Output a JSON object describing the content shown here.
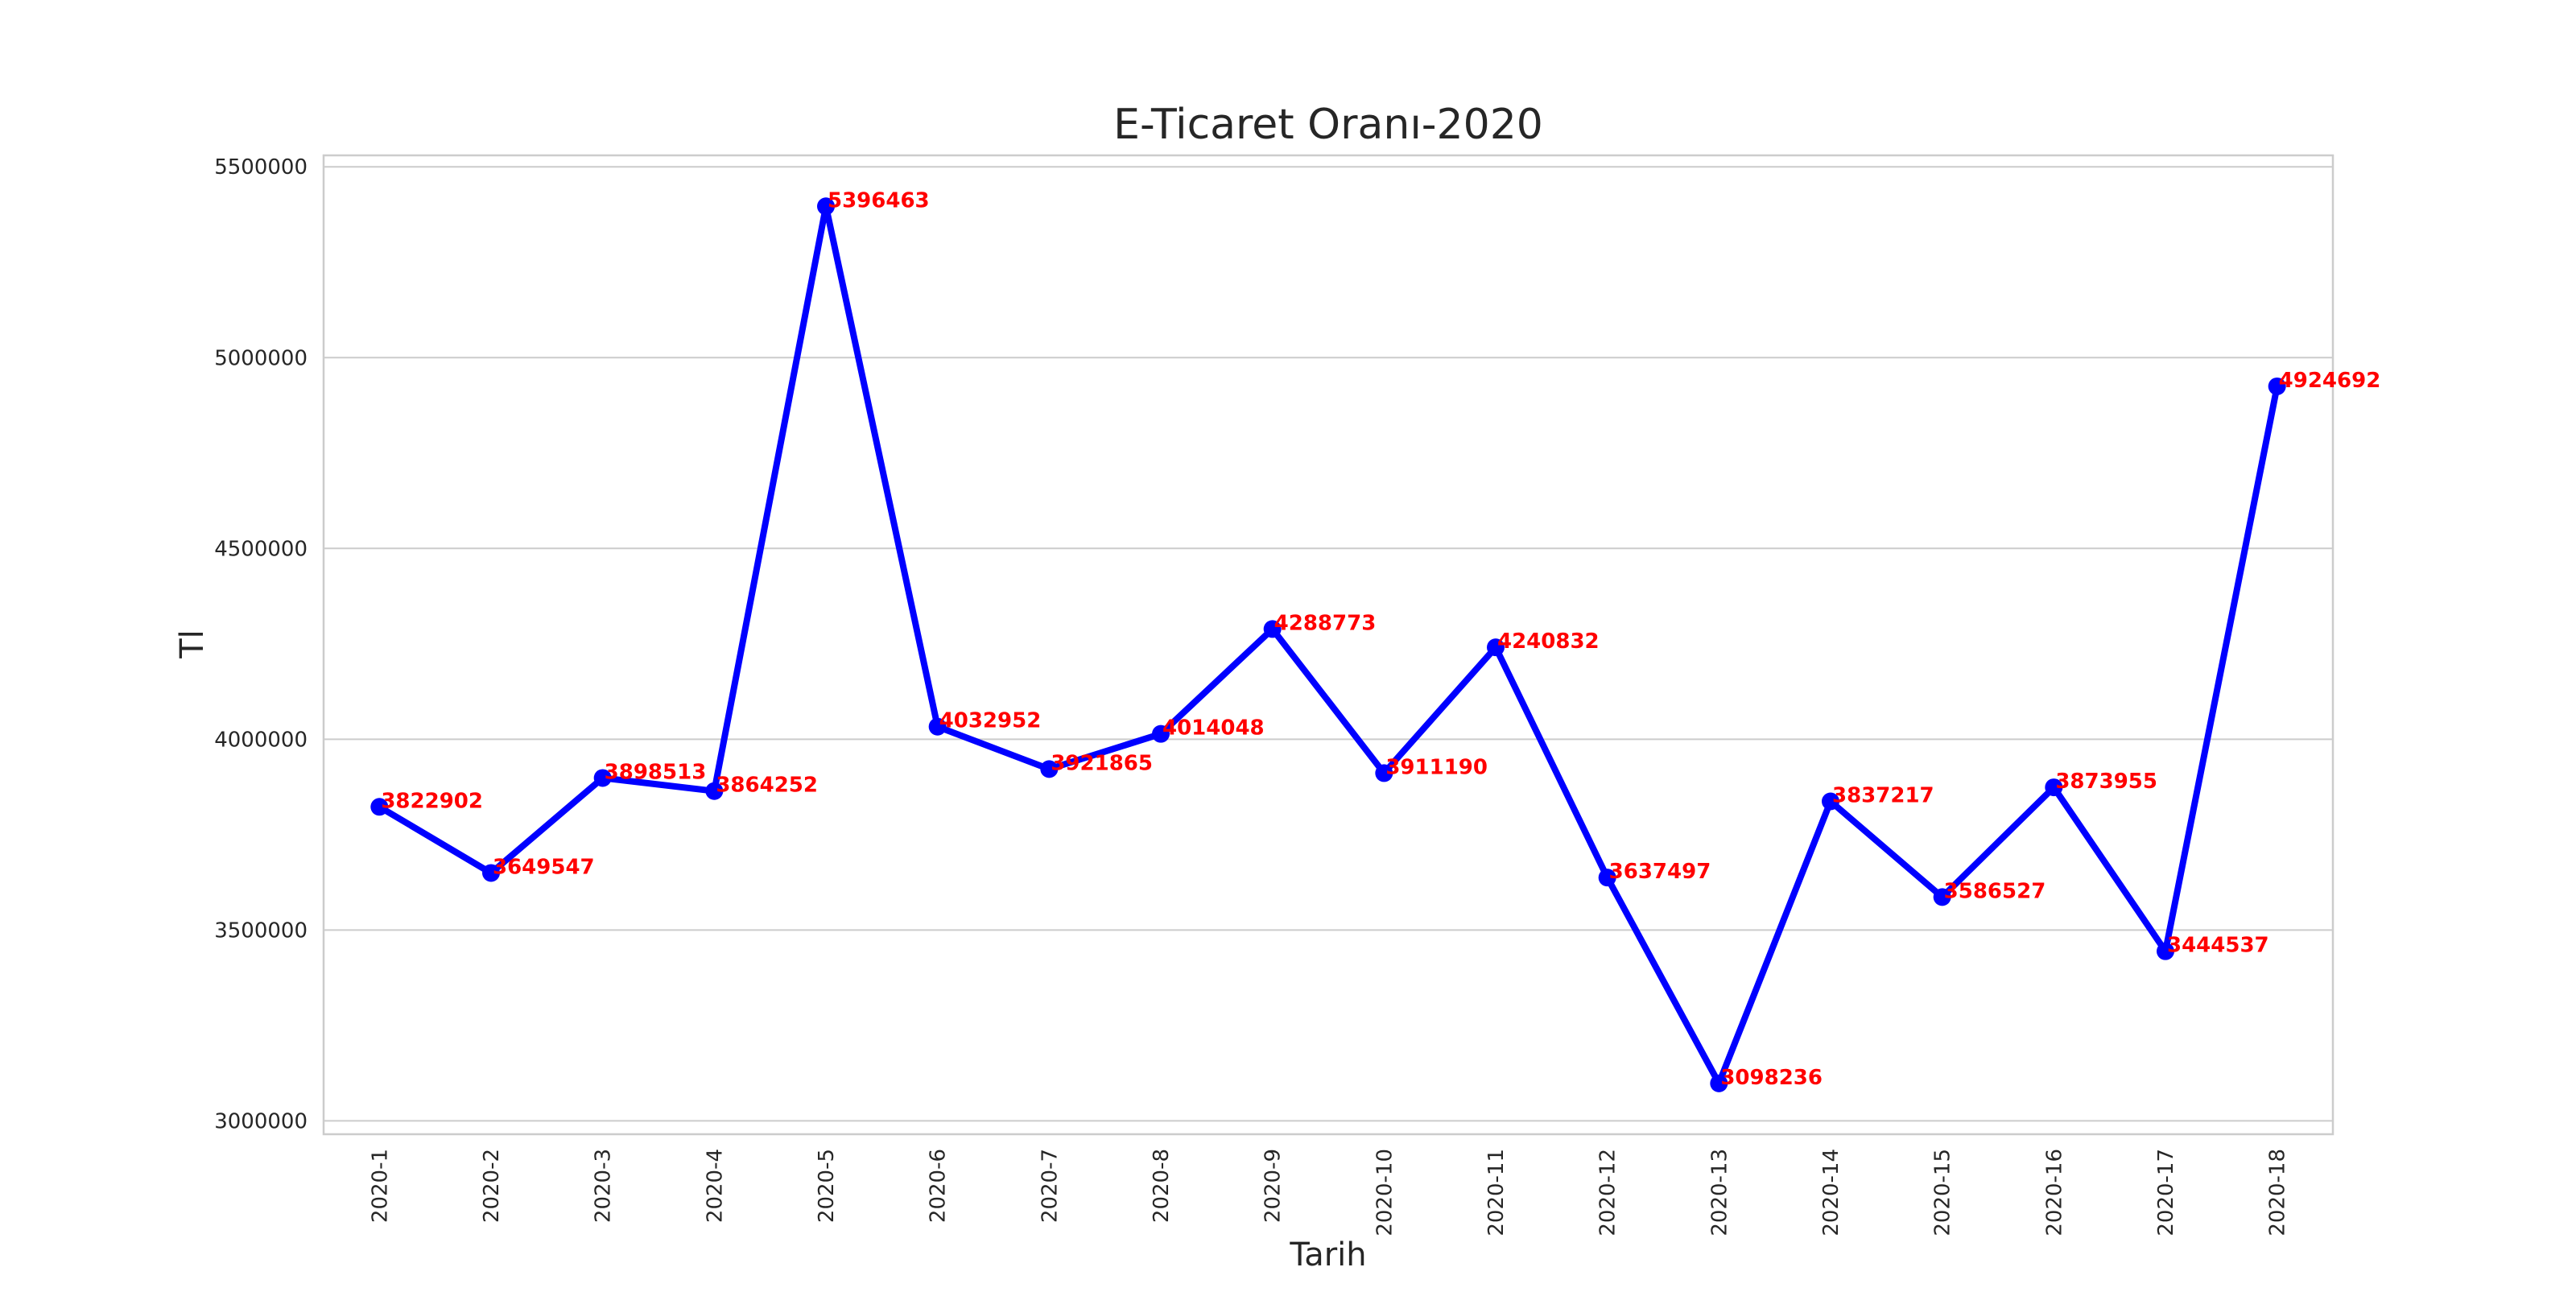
{
  "chart_data": {
    "type": "line",
    "title": "E-Ticaret Oranı-2020",
    "xlabel": "Tarih",
    "ylabel": "Tl",
    "categories": [
      "2020-1",
      "2020-2",
      "2020-3",
      "2020-4",
      "2020-5",
      "2020-6",
      "2020-7",
      "2020-8",
      "2020-9",
      "2020-10",
      "2020-11",
      "2020-12",
      "2020-13",
      "2020-14",
      "2020-15",
      "2020-16",
      "2020-17",
      "2020-18"
    ],
    "series": [
      {
        "values": [
          3822902,
          3649547,
          3898513,
          3864252,
          5396463,
          4032952,
          3921865,
          4014048,
          4288773,
          3911190,
          4240832,
          3637497,
          3098236,
          3837217,
          3586527,
          3873955,
          3444537,
          4924692
        ],
        "color": "#0000ff"
      }
    ],
    "data_labels": [
      "3822902",
      "3649547",
      "3898513",
      "3864252",
      "5396463",
      "4032952",
      "3921865",
      "4014048",
      "4288773",
      "3911190",
      "4240832",
      "3637497",
      "3098236",
      "3837217",
      "3586527",
      "3873955",
      "3444537",
      "4924692"
    ],
    "yticks": [
      3000000,
      3500000,
      4000000,
      4500000,
      5000000,
      5500000
    ],
    "ytick_labels": [
      "3000000",
      "3500000",
      "4000000",
      "4500000",
      "5000000",
      "5500000"
    ],
    "ylim": [
      2965000,
      5530000
    ],
    "grid": "horizontal",
    "label_color": "#ff0000"
  }
}
